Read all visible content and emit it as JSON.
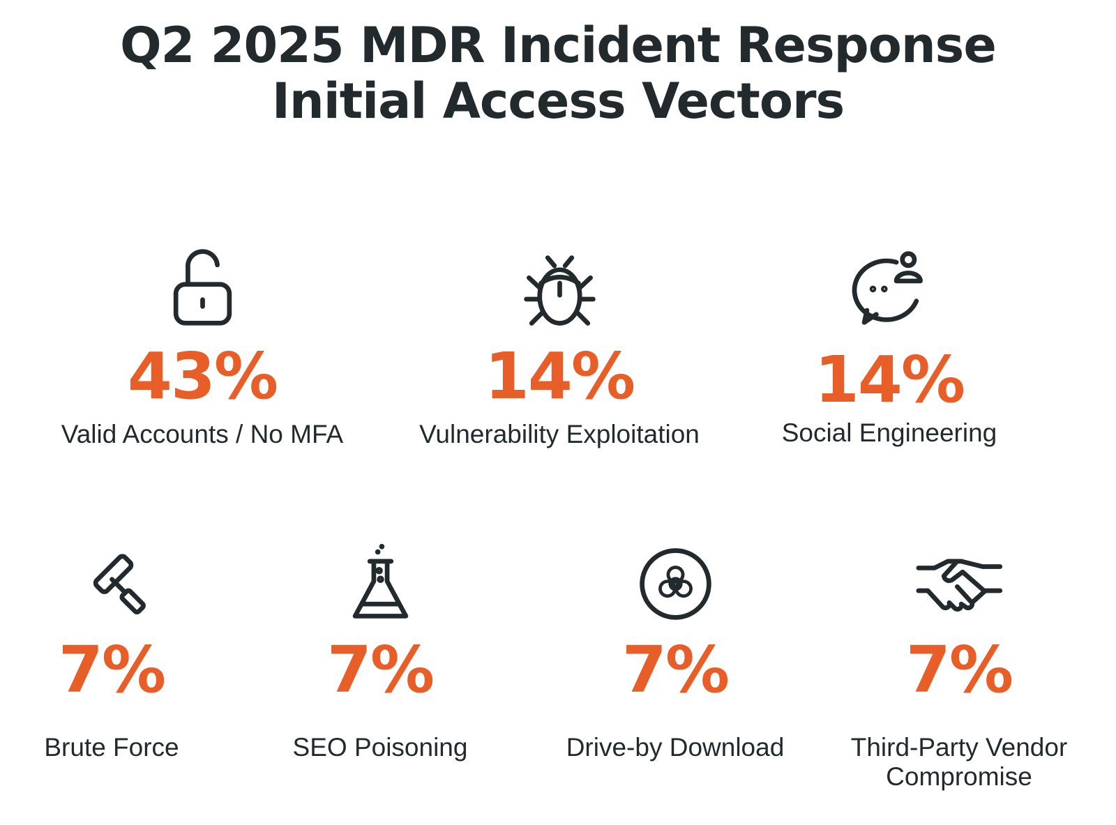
{
  "title": {
    "line1": "Q2 2025 MDR Incident Response",
    "line2": "Initial Access Vectors"
  },
  "colors": {
    "accent": "#e85e28",
    "text": "#222a2e"
  },
  "chart_data": {
    "type": "table",
    "title": "Q2 2025 MDR Incident Response Initial Access Vectors",
    "unit": "%",
    "categories": [
      "Valid Accounts / No MFA",
      "Vulnerability Exploitation",
      "Social Engineering",
      "Brute Force",
      "SEO Poisoning",
      "Drive-by Download",
      "Third-Party Vendor Compromise"
    ],
    "values": [
      43,
      14,
      14,
      7,
      7,
      7,
      7
    ]
  },
  "items": [
    {
      "pct": "43%",
      "label": "Valid Accounts / No MFA",
      "icon": "unlocked-padlock-icon"
    },
    {
      "pct": "14%",
      "label": "Vulnerability Exploitation",
      "icon": "bug-icon"
    },
    {
      "pct": "14%",
      "label": "Social Engineering",
      "icon": "chat-user-icon"
    },
    {
      "pct": "7%",
      "label": "Brute Force",
      "icon": "hammer-icon"
    },
    {
      "pct": "7%",
      "label": "SEO Poisoning",
      "icon": "flask-icon"
    },
    {
      "pct": "7%",
      "label": "Drive-by Download",
      "icon": "biohazard-icon"
    },
    {
      "pct": "7%",
      "label": "Third-Party Vendor",
      "label2": "Compromise",
      "icon": "handshake-icon"
    }
  ]
}
